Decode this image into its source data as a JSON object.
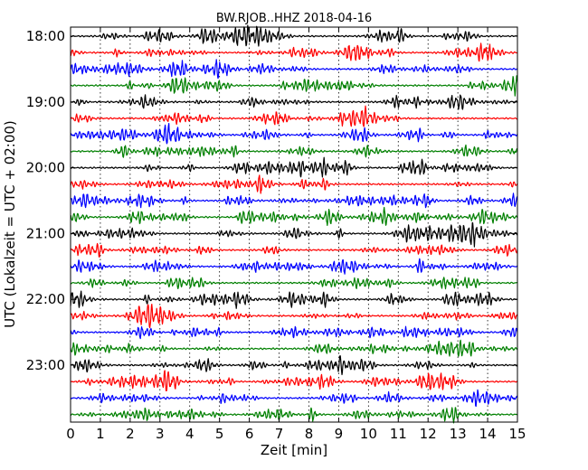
{
  "chart_data": {
    "type": "line",
    "title": "BW.RJOB..HHZ 2018-04-16",
    "xlabel": "Zeit  [min]",
    "ylabel": "UTC (Lokalzeit = UTC + 02:00)",
    "xlim": [
      0,
      15
    ],
    "x_ticks": [
      "0",
      "1",
      "2",
      "3",
      "4",
      "5",
      "6",
      "7",
      "8",
      "9",
      "10",
      "11",
      "12",
      "13",
      "14",
      "15"
    ],
    "y_ticks": [
      "18:00",
      "19:00",
      "20:00",
      "21:00",
      "22:00",
      "23:00"
    ],
    "grid": "vertical dotted",
    "trace_colors": [
      "#000000",
      "#ff0000",
      "#0000ff",
      "#008000"
    ],
    "trace_count": 24,
    "trace_interval_minutes": 15
  }
}
